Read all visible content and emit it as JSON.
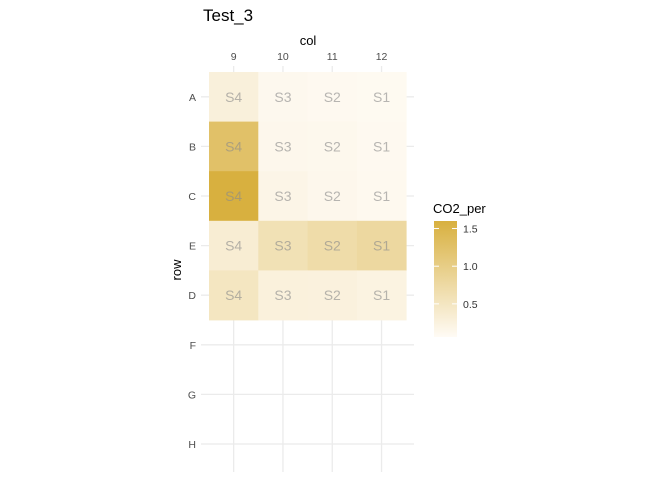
{
  "chart_data": {
    "type": "heatmap",
    "title": "Test_3",
    "xlabel": "col",
    "ylabel": "row",
    "x_position": "top",
    "x_categories": [
      "9",
      "10",
      "11",
      "12"
    ],
    "y_categories": [
      "A",
      "B",
      "C",
      "E",
      "D",
      "F",
      "G",
      "H"
    ],
    "cells": [
      {
        "row": "A",
        "col": "9",
        "label": "S4",
        "value": 0.28
      },
      {
        "row": "A",
        "col": "10",
        "label": "S3",
        "value": 0.12
      },
      {
        "row": "A",
        "col": "11",
        "label": "S2",
        "value": 0.1
      },
      {
        "row": "A",
        "col": "12",
        "label": "S1",
        "value": 0.09
      },
      {
        "row": "B",
        "col": "9",
        "label": "S4",
        "value": 1.25
      },
      {
        "row": "B",
        "col": "10",
        "label": "S3",
        "value": 0.14
      },
      {
        "row": "B",
        "col": "11",
        "label": "S2",
        "value": 0.13
      },
      {
        "row": "B",
        "col": "12",
        "label": "S1",
        "value": 0.1
      },
      {
        "row": "C",
        "col": "9",
        "label": "S4",
        "value": 1.6
      },
      {
        "row": "C",
        "col": "10",
        "label": "S3",
        "value": 0.18
      },
      {
        "row": "C",
        "col": "11",
        "label": "S2",
        "value": 0.14
      },
      {
        "row": "C",
        "col": "12",
        "label": "S1",
        "value": 0.11
      },
      {
        "row": "E",
        "col": "9",
        "label": "S4",
        "value": 0.35
      },
      {
        "row": "E",
        "col": "10",
        "label": "S3",
        "value": 0.6
      },
      {
        "row": "E",
        "col": "11",
        "label": "S2",
        "value": 0.7
      },
      {
        "row": "E",
        "col": "12",
        "label": "S1",
        "value": 0.78
      },
      {
        "row": "D",
        "col": "9",
        "label": "S4",
        "value": 0.5
      },
      {
        "row": "D",
        "col": "10",
        "label": "S3",
        "value": 0.27
      },
      {
        "row": "D",
        "col": "11",
        "label": "S2",
        "value": 0.26
      },
      {
        "row": "D",
        "col": "12",
        "label": "S1",
        "value": 0.23
      }
    ],
    "legend": {
      "title": "CO2_per",
      "ticks": [
        0.5,
        1.0,
        1.5
      ],
      "tick_labels": [
        "0.5",
        "1.0",
        "1.5"
      ],
      "range": [
        0.06,
        1.6
      ],
      "placement": "right"
    },
    "colors": {
      "low": "#fffbf5",
      "high": "#d8b03f",
      "grid": "#ebebeb"
    },
    "grid": true
  }
}
